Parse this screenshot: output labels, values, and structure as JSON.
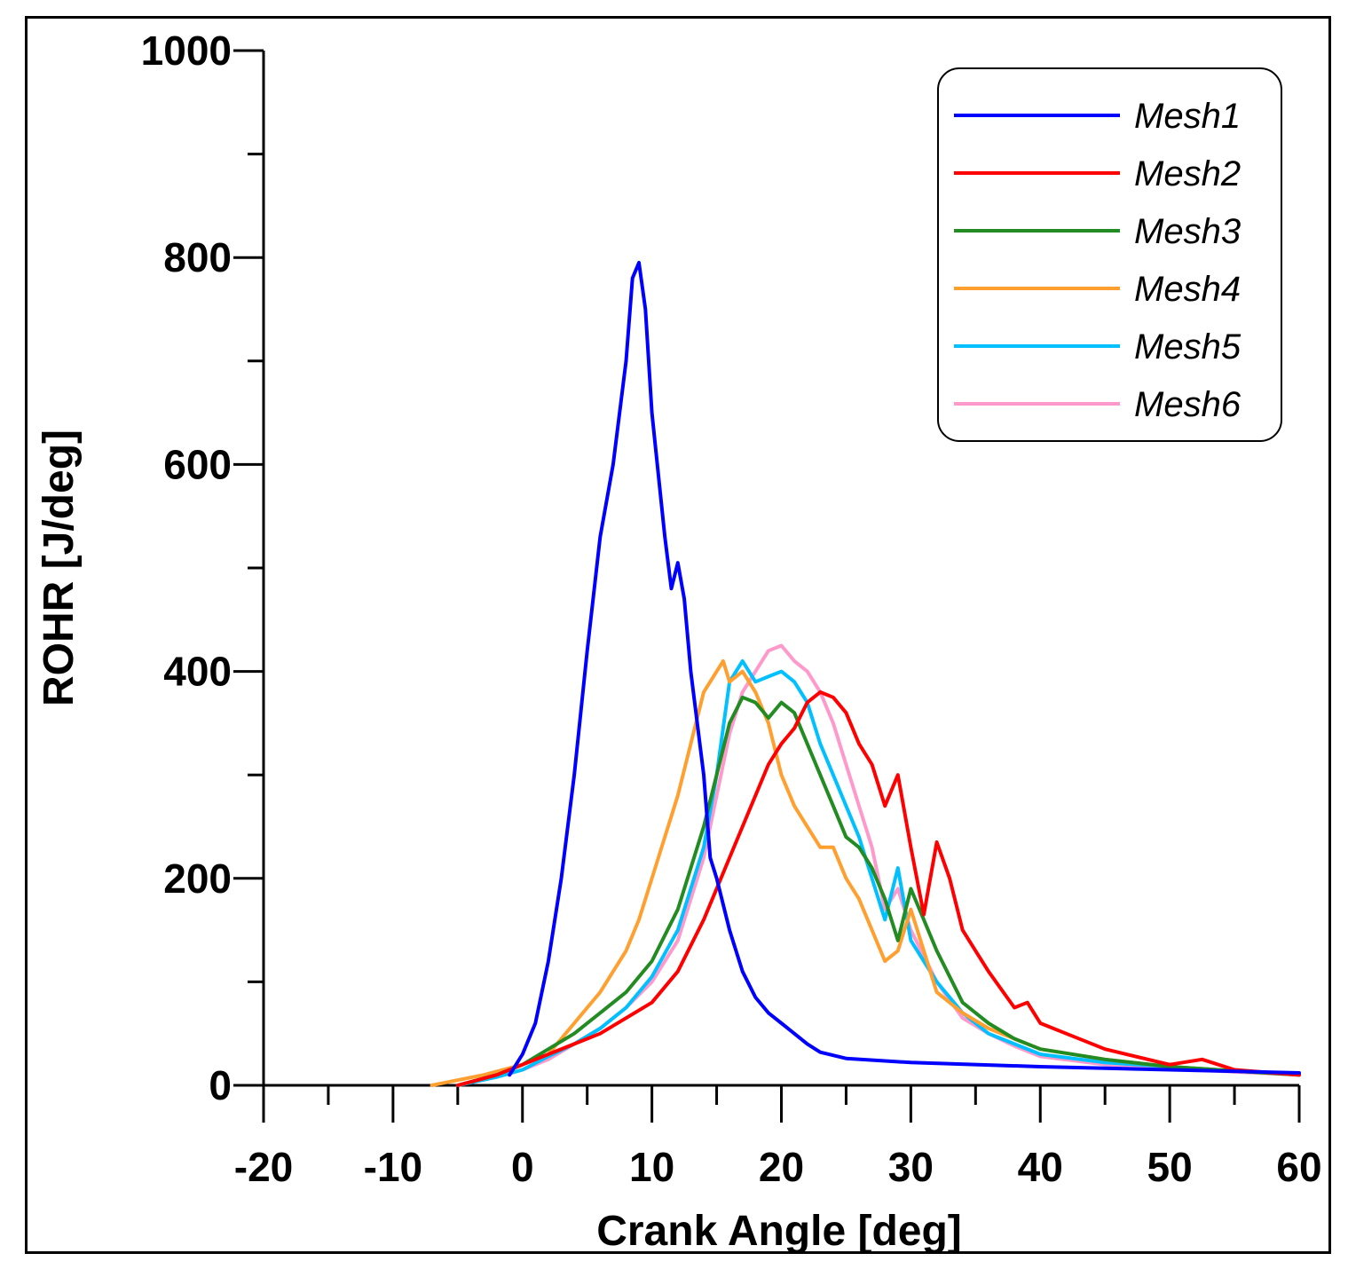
{
  "chart_data": {
    "type": "line",
    "title": "",
    "xlabel": "Crank Angle [deg]",
    "ylabel": "ROHR [J/deg]",
    "xlim": [
      -20,
      60
    ],
    "ylim": [
      0,
      1000
    ],
    "x_ticks": [
      -20,
      -10,
      0,
      10,
      20,
      30,
      40,
      50,
      60
    ],
    "x_tick_labels": [
      "-20",
      "-10",
      "0",
      "10",
      "20",
      "30",
      "40",
      "50",
      "60"
    ],
    "y_ticks": [
      0,
      200,
      400,
      600,
      800,
      1000
    ],
    "y_tick_labels": [
      "0",
      "200",
      "400",
      "600",
      "800",
      "1000"
    ],
    "grid": false,
    "legend_position": "top-right",
    "series": [
      {
        "name": "Mesh1",
        "color": "#0000ff",
        "x": [
          -1,
          0,
          1,
          2,
          3,
          4,
          5,
          6,
          7,
          8,
          8.5,
          9,
          9.5,
          10,
          11,
          11.5,
          12,
          12.5,
          13,
          14,
          14.5,
          15,
          16,
          17,
          18,
          19,
          20,
          21,
          22,
          23,
          25,
          30,
          40,
          50,
          60
        ],
        "y": [
          10,
          30,
          60,
          120,
          200,
          300,
          420,
          530,
          600,
          700,
          780,
          795,
          750,
          650,
          530,
          480,
          505,
          470,
          400,
          300,
          220,
          200,
          150,
          110,
          85,
          70,
          60,
          50,
          40,
          32,
          26,
          22,
          18,
          15,
          12
        ]
      },
      {
        "name": "Mesh2",
        "color": "#ff0000",
        "x": [
          -5,
          -2,
          0,
          2,
          4,
          6,
          8,
          10,
          12,
          14,
          16,
          18,
          19,
          20,
          21,
          22,
          23,
          24,
          25,
          26,
          27,
          28,
          29,
          30,
          31,
          32,
          33,
          34,
          35,
          36,
          38,
          39,
          40,
          42,
          45,
          50,
          52.5,
          55,
          60
        ],
        "y": [
          0,
          10,
          20,
          30,
          40,
          50,
          65,
          80,
          110,
          160,
          220,
          280,
          310,
          330,
          345,
          370,
          380,
          375,
          360,
          330,
          310,
          270,
          300,
          230,
          165,
          235,
          200,
          150,
          130,
          110,
          75,
          80,
          60,
          50,
          35,
          20,
          25,
          15,
          10
        ]
      },
      {
        "name": "Mesh3",
        "color": "#228b22",
        "x": [
          -5,
          -2,
          0,
          2,
          4,
          6,
          8,
          10,
          12,
          14,
          16,
          17,
          18,
          19,
          20,
          21,
          22,
          23,
          24,
          25,
          26,
          27,
          28,
          29,
          30,
          31,
          32,
          34,
          36,
          38,
          40,
          45,
          50,
          55,
          60
        ],
        "y": [
          0,
          10,
          20,
          35,
          50,
          70,
          90,
          120,
          170,
          250,
          350,
          375,
          370,
          355,
          370,
          360,
          330,
          300,
          270,
          240,
          230,
          210,
          180,
          140,
          190,
          160,
          130,
          80,
          60,
          45,
          35,
          25,
          18,
          14,
          10
        ]
      },
      {
        "name": "Mesh4",
        "color": "#ff9f2f",
        "x": [
          -7,
          -3,
          0,
          2,
          3,
          4,
          5,
          6,
          7,
          8,
          9,
          10,
          11,
          12,
          13,
          14,
          15,
          15.5,
          16,
          17,
          18,
          19,
          20,
          21,
          22,
          23,
          24,
          25,
          26,
          27,
          28,
          29,
          30,
          32,
          34,
          36,
          38,
          40,
          45,
          50,
          55,
          60
        ],
        "y": [
          0,
          10,
          20,
          30,
          45,
          60,
          75,
          90,
          110,
          130,
          160,
          200,
          240,
          280,
          330,
          380,
          400,
          410,
          390,
          400,
          380,
          350,
          300,
          270,
          250,
          230,
          230,
          200,
          180,
          150,
          120,
          130,
          170,
          90,
          70,
          55,
          45,
          35,
          25,
          18,
          14,
          10
        ]
      },
      {
        "name": "Mesh5",
        "color": "#00c0ff",
        "x": [
          -5,
          -2,
          0,
          2,
          4,
          6,
          8,
          10,
          12,
          14,
          15,
          16,
          17,
          18,
          19,
          20,
          21,
          22,
          23,
          24,
          25,
          26,
          27,
          28,
          29,
          30,
          32,
          34,
          36,
          38,
          40,
          45,
          50,
          55,
          60
        ],
        "y": [
          0,
          8,
          15,
          28,
          40,
          55,
          75,
          105,
          150,
          230,
          300,
          390,
          410,
          390,
          395,
          400,
          390,
          370,
          330,
          300,
          270,
          240,
          200,
          160,
          210,
          140,
          100,
          70,
          50,
          40,
          30,
          22,
          18,
          14,
          10
        ]
      },
      {
        "name": "Mesh6",
        "color": "#ff99cc",
        "x": [
          -5,
          -2,
          0,
          2,
          4,
          6,
          8,
          10,
          12,
          14,
          15,
          16,
          17,
          18,
          19,
          20,
          21,
          22,
          23,
          24,
          25,
          26,
          27,
          28,
          29,
          30,
          32,
          34,
          36,
          38,
          40,
          45,
          50,
          55,
          60
        ],
        "y": [
          0,
          8,
          15,
          25,
          40,
          55,
          75,
          100,
          140,
          220,
          280,
          340,
          380,
          400,
          420,
          425,
          410,
          400,
          380,
          350,
          310,
          270,
          230,
          170,
          190,
          150,
          100,
          65,
          50,
          38,
          28,
          20,
          16,
          13,
          10
        ]
      }
    ]
  }
}
